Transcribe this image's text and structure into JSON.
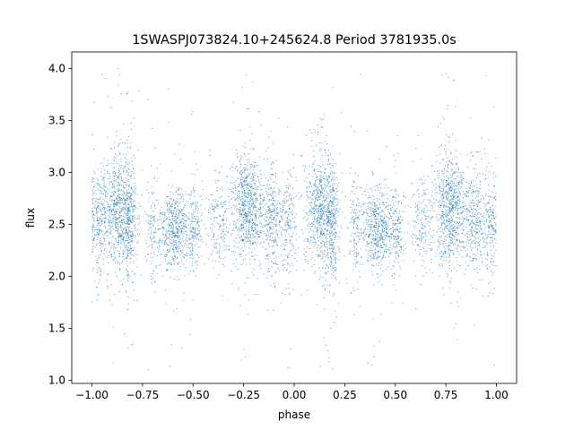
{
  "chart_data": {
    "type": "scatter",
    "title": "1SWASPJ073824.10+245624.8 Period 3781935.0s",
    "xlabel": "phase",
    "ylabel": "flux",
    "xlim": [
      -1.1,
      1.1
    ],
    "ylim": [
      0.97,
      4.16
    ],
    "xticks": [
      -1.0,
      -0.75,
      -0.5,
      -0.25,
      0.0,
      0.25,
      0.5,
      0.75,
      1.0
    ],
    "xtick_labels": [
      "−1.00",
      "−0.75",
      "−0.50",
      "−0.25",
      "0.00",
      "0.25",
      "0.50",
      "0.75",
      "1.00"
    ],
    "yticks": [
      1.0,
      1.5,
      2.0,
      2.5,
      3.0,
      3.5,
      4.0
    ],
    "ytick_labels": [
      "1.0",
      "1.5",
      "2.0",
      "2.5",
      "3.0",
      "3.5",
      "4.0"
    ],
    "grid": false,
    "marker_color": "#1f77b4",
    "series": [
      {
        "x_range": [
          -1.0,
          1.0
        ],
        "clusters": [
          {
            "x_center": -0.97,
            "x_spread": 0.025,
            "y_center": 2.55,
            "y_spread": 0.25,
            "weight": 10
          },
          {
            "x_center": -0.87,
            "x_spread": 0.04,
            "y_center": 2.65,
            "y_spread": 0.28,
            "weight": 28
          },
          {
            "x_center": -0.81,
            "x_spread": 0.015,
            "y_center": 2.5,
            "y_spread": 0.3,
            "weight": 10
          },
          {
            "x_center": -0.7,
            "x_spread": 0.02,
            "y_center": 2.45,
            "y_spread": 0.25,
            "weight": 5
          },
          {
            "x_center": -0.59,
            "x_spread": 0.04,
            "y_center": 2.45,
            "y_spread": 0.2,
            "weight": 22
          },
          {
            "x_center": -0.49,
            "x_spread": 0.02,
            "y_center": 2.45,
            "y_spread": 0.22,
            "weight": 7
          },
          {
            "x_center": -0.37,
            "x_spread": 0.03,
            "y_center": 2.5,
            "y_spread": 0.22,
            "weight": 7
          },
          {
            "x_center": -0.23,
            "x_spread": 0.04,
            "y_center": 2.65,
            "y_spread": 0.26,
            "weight": 30
          },
          {
            "x_center": -0.11,
            "x_spread": 0.025,
            "y_center": 2.55,
            "y_spread": 0.24,
            "weight": 12
          },
          {
            "x_center": -0.03,
            "x_spread": 0.02,
            "y_center": 2.5,
            "y_spread": 0.25,
            "weight": 8
          },
          {
            "x_center": 0.13,
            "x_spread": 0.04,
            "y_center": 2.65,
            "y_spread": 0.28,
            "weight": 28
          },
          {
            "x_center": 0.19,
            "x_spread": 0.015,
            "y_center": 2.5,
            "y_spread": 0.3,
            "weight": 10
          },
          {
            "x_center": 0.3,
            "x_spread": 0.02,
            "y_center": 2.45,
            "y_spread": 0.25,
            "weight": 5
          },
          {
            "x_center": 0.41,
            "x_spread": 0.04,
            "y_center": 2.45,
            "y_spread": 0.2,
            "weight": 22
          },
          {
            "x_center": 0.51,
            "x_spread": 0.02,
            "y_center": 2.45,
            "y_spread": 0.22,
            "weight": 7
          },
          {
            "x_center": 0.63,
            "x_spread": 0.03,
            "y_center": 2.5,
            "y_spread": 0.22,
            "weight": 7
          },
          {
            "x_center": 0.77,
            "x_spread": 0.04,
            "y_center": 2.65,
            "y_spread": 0.26,
            "weight": 30
          },
          {
            "x_center": 0.89,
            "x_spread": 0.025,
            "y_center": 2.55,
            "y_spread": 0.24,
            "weight": 12
          },
          {
            "x_center": 0.97,
            "x_spread": 0.02,
            "y_center": 2.5,
            "y_spread": 0.25,
            "weight": 8
          }
        ]
      }
    ]
  }
}
